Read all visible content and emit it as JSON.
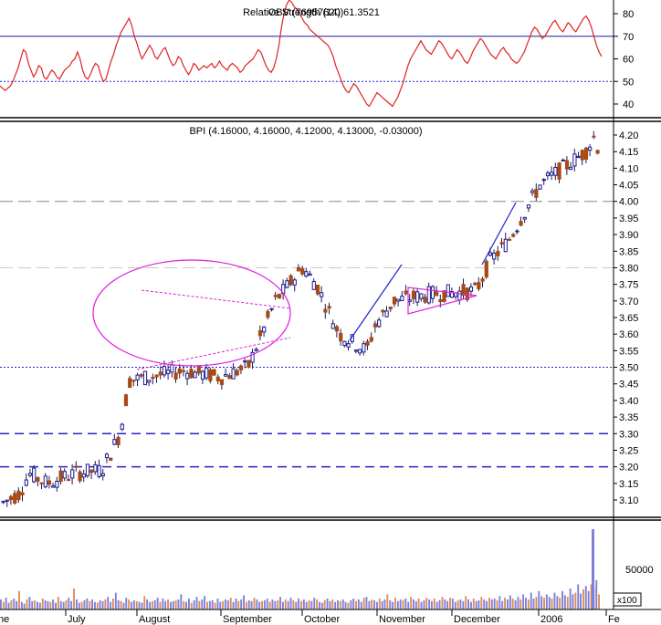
{
  "chart_data": [
    {
      "type": "line",
      "panel": "indicator",
      "title": "Relative Strength (14) 61.3521",
      "title_overlap": "OBV (76957620)",
      "yticks": [
        40,
        50,
        60,
        70,
        80
      ],
      "ylim": [
        34,
        88
      ],
      "reference_lines": [
        {
          "value": 70,
          "style": "solid",
          "color": "#1c1ca0"
        },
        {
          "value": 50,
          "style": "dotted",
          "color": "#2323c8"
        }
      ],
      "series": [
        {
          "color": "#dd2222",
          "values": [
            48,
            47,
            46,
            47,
            48,
            50,
            53,
            56,
            60,
            64,
            63,
            58,
            55,
            52,
            54,
            57,
            56,
            52,
            51,
            53,
            55,
            54,
            52,
            51,
            53,
            55,
            56,
            57,
            59,
            60,
            63,
            60,
            55,
            52,
            51,
            53,
            56,
            58,
            57,
            53,
            50,
            51,
            55,
            59,
            62,
            66,
            69,
            72,
            74,
            76,
            78,
            75,
            70,
            67,
            63,
            60,
            62,
            64,
            66,
            64,
            61,
            60,
            62,
            64,
            65,
            62,
            59,
            57,
            58,
            61,
            60,
            57,
            55,
            53,
            55,
            58,
            57,
            55,
            56,
            57,
            56,
            57,
            58,
            56,
            57,
            59,
            57,
            56,
            55,
            57,
            58,
            57,
            56,
            54,
            55,
            57,
            58,
            59,
            60,
            62,
            64,
            63,
            60,
            57,
            55,
            54,
            56,
            60,
            66,
            74,
            80,
            84,
            86,
            85,
            83,
            82,
            80,
            78,
            76,
            75,
            73,
            72,
            71,
            70,
            69,
            68,
            67,
            66,
            64,
            61,
            57,
            54,
            51,
            48,
            46,
            45,
            47,
            49,
            48,
            46,
            44,
            42,
            40,
            39,
            41,
            43,
            45,
            44,
            43,
            42,
            41,
            40,
            39,
            41,
            43,
            46,
            49,
            53,
            57,
            60,
            62,
            64,
            66,
            68,
            66,
            64,
            63,
            62,
            64,
            66,
            68,
            67,
            65,
            63,
            61,
            60,
            62,
            64,
            63,
            61,
            59,
            58,
            60,
            63,
            65,
            67,
            69,
            68,
            66,
            64,
            62,
            61,
            60,
            62,
            64,
            65,
            63,
            62,
            60,
            59,
            58,
            59,
            61,
            63,
            66,
            69,
            72,
            74,
            73,
            71,
            69,
            70,
            72,
            74,
            76,
            77,
            75,
            73,
            72,
            74,
            76,
            75,
            73,
            72,
            74,
            76,
            78,
            79,
            77,
            74,
            70,
            66,
            63,
            61
          ]
        }
      ]
    },
    {
      "type": "candlestick",
      "panel": "price",
      "title": "BPI (4.16000, 4.16000, 4.12000, 4.13000, -0.03000)",
      "yticks": [
        "3.10",
        "3.15",
        "3.20",
        "3.25",
        "3.30",
        "3.35",
        "3.40",
        "3.45",
        "3.50",
        "3.55",
        "3.60",
        "3.65",
        "3.70",
        "3.75",
        "3.80",
        "3.85",
        "3.90",
        "3.95",
        "4.00",
        "4.05",
        "4.10",
        "4.15",
        "4.20"
      ],
      "ylim": [
        3.05,
        4.25
      ],
      "x_labels": [
        "ne",
        "July",
        "August",
        "September",
        "October",
        "November",
        "December",
        "2006",
        "Fe"
      ],
      "reference_lines": [
        {
          "value": 4.0,
          "style": "long-dash",
          "color": "#888888"
        },
        {
          "value": 3.8,
          "style": "long-dash",
          "color": "#c8c8c8"
        },
        {
          "value": 3.5,
          "style": "dotted",
          "color": "#2323c8"
        },
        {
          "value": 3.3,
          "style": "dashed",
          "color": "#2323c8"
        },
        {
          "value": 3.2,
          "style": "dashed",
          "color": "#2323c8"
        }
      ],
      "annotations": [
        {
          "kind": "ellipse",
          "color": "#e020e0"
        },
        {
          "kind": "pennant-upper",
          "color": "#e020e0"
        },
        {
          "kind": "pennant-lower",
          "color": "#e020e0"
        },
        {
          "kind": "triangle",
          "color": "#e020e0"
        },
        {
          "kind": "trendline",
          "color": "#2323c8"
        },
        {
          "kind": "trendline",
          "color": "#2323c8"
        }
      ]
    },
    {
      "type": "bar",
      "panel": "volume",
      "yticks": [
        "50000"
      ],
      "unit_label": "x100",
      "ylim": [
        0,
        100000
      ],
      "volume": [
        12000,
        9000,
        14000,
        8000,
        11000,
        13000,
        10000,
        22000,
        9000,
        7000,
        12000,
        15000,
        10000,
        11000,
        9000,
        8000,
        13000,
        11000,
        10000,
        9000,
        12000,
        8000,
        15000,
        10000,
        9000,
        11000,
        14000,
        10000,
        25000,
        12000,
        8000,
        9000,
        11000,
        13000,
        10000,
        12000,
        9000,
        8000,
        11000,
        10000,
        12000,
        15000,
        9000,
        13000,
        20000,
        11000,
        10000,
        8000,
        14000,
        12000,
        9000,
        11000,
        10000,
        9000,
        8000,
        16000,
        12000,
        9000,
        10000,
        11000,
        14000,
        9000,
        13000,
        10000,
        12000,
        9000,
        10000,
        11000,
        12000,
        18000,
        10000,
        9000,
        13000,
        8000,
        11000,
        15000,
        10000,
        12000,
        16000,
        9000,
        10000,
        11000,
        8000,
        13000,
        9000,
        10000,
        12000,
        11000,
        14000,
        9000,
        13000,
        10000,
        12000,
        17000,
        9000,
        11000,
        10000,
        14000,
        12000,
        9000,
        10000,
        11000,
        13000,
        9000,
        12000,
        10000,
        11000,
        15000,
        9000,
        12000,
        10000,
        14000,
        11000,
        9000,
        13000,
        10000,
        12000,
        9000,
        11000,
        10000,
        14000,
        12000,
        9000,
        8000,
        11000,
        13000,
        10000,
        12000,
        9000,
        11000,
        10000,
        12000,
        9000,
        8000,
        11000,
        13000,
        10000,
        12000,
        9000,
        14000,
        15000,
        10000,
        12000,
        11000,
        9000,
        13000,
        10000,
        12000,
        18000,
        11000,
        9000,
        14000,
        10000,
        12000,
        11000,
        13000,
        9000,
        15000,
        12000,
        10000,
        13000,
        9000,
        11000,
        14000,
        12000,
        10000,
        13000,
        9000,
        11000,
        15000,
        12000,
        10000,
        14000,
        13000,
        9000,
        11000,
        12000,
        10000,
        16000,
        12000,
        9000,
        13000,
        10000,
        11000,
        15000,
        12000,
        10000,
        14000,
        12000,
        13000,
        11000,
        16000,
        10000,
        14000,
        12000,
        17000,
        13000,
        11000,
        15000,
        12000,
        18000,
        14000,
        12000,
        20000,
        13000,
        15000,
        22000,
        16000,
        14000,
        18000,
        15000,
        13000,
        20000,
        16000,
        14000,
        22000,
        17000,
        15000,
        25000,
        18000,
        20000,
        30000,
        19000,
        24000,
        28000,
        22000,
        30000,
        26000,
        35000,
        18000
      ]
    }
  ],
  "price_panel": {
    "title": "BPI (4.16000, 4.16000, 4.12000, 4.13000, -0.03000)"
  },
  "indicator_panel": {
    "title_a": "OBV (76957620)",
    "title_b": "Relative Strength (14) 61.3521"
  },
  "volume_panel": {
    "tick_label": "50000",
    "unit_label": "x100"
  },
  "colors": {
    "up": "#1c1c8c",
    "down": "#a84a14",
    "rsi": "#dd2222",
    "vol_blue": "#8080d8",
    "vol_orange": "#e08c58",
    "annotation": "#e020e0"
  }
}
